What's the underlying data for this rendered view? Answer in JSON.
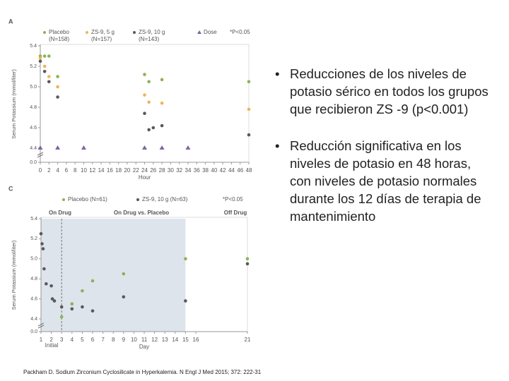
{
  "chart_data": [
    {
      "type": "scatter",
      "panel": "A",
      "y_label": "Serum Potassium (mmol/liter)",
      "x_label": "Hour",
      "xlim": [
        0,
        48
      ],
      "xticks": [
        0,
        2,
        4,
        6,
        8,
        10,
        12,
        14,
        16,
        18,
        20,
        22,
        24,
        26,
        28,
        30,
        32,
        34,
        36,
        38,
        40,
        42,
        44,
        46,
        48
      ],
      "ylim": [
        0,
        5.4
      ],
      "y_break": true,
      "yticks": [
        {
          "value": 0,
          "label": "0.0"
        },
        4.4,
        4.6,
        4.8,
        {
          "value": 5,
          "label": "5.0"
        },
        5.2,
        5.4
      ],
      "legend_note": "*P<0.05",
      "series": [
        {
          "name": "Placebo",
          "note": "(N=158)",
          "color": "#8db255",
          "x": [
            0,
            1,
            2,
            4,
            24,
            25,
            28,
            48
          ],
          "values": [
            5.3,
            5.3,
            5.3,
            5.1,
            5.12,
            5.05,
            5.07,
            5.05
          ]
        },
        {
          "name": "ZS-9, 5 g",
          "note": "(N=157)",
          "color": "#f0b45a",
          "x": [
            0,
            1,
            2,
            4,
            24,
            25,
            28,
            48
          ],
          "values": [
            5.28,
            5.2,
            5.1,
            5.0,
            4.92,
            4.85,
            4.84,
            4.78
          ]
        },
        {
          "name": "ZS-9, 10 g",
          "note": "(N=143)",
          "color": "#595959",
          "x": [
            0,
            1,
            2,
            4,
            24,
            25,
            26,
            28,
            48
          ],
          "values": [
            5.25,
            5.15,
            5.05,
            4.9,
            4.74,
            4.58,
            4.6,
            4.62,
            4.53
          ]
        },
        {
          "name": "Dose",
          "color": "#8064a2",
          "marker": "triangle",
          "x": [
            0,
            4,
            10,
            24,
            28,
            34
          ]
        }
      ]
    },
    {
      "type": "scatter",
      "panel": "C",
      "y_label": "Serum Potassium (mmol/liter)",
      "x_label": "Day",
      "xlim": [
        1,
        21
      ],
      "xticks": [
        1,
        2,
        3,
        4,
        5,
        6,
        7,
        8,
        9,
        10,
        11,
        12,
        13,
        14,
        15,
        16,
        21
      ],
      "ylim": [
        0,
        5.4
      ],
      "y_break": true,
      "yticks": [
        {
          "value": 0,
          "label": "0.0"
        },
        4.4,
        4.6,
        4.8,
        {
          "value": 5,
          "label": "5.0"
        },
        5.2,
        5.4
      ],
      "legend_note": "*P<0.05",
      "shaded_span": [
        1,
        15
      ],
      "vline": 3,
      "annotations": [
        "On Drug",
        "On Drug vs. Placebo",
        "Off Drug",
        "Initial"
      ],
      "series": [
        {
          "name": "Placebo (N=61)",
          "color": "#8db255",
          "x": [
            3,
            4,
            5,
            6,
            9,
            15,
            21
          ],
          "values": [
            4.42,
            4.55,
            4.68,
            4.78,
            4.85,
            5.0,
            5.0
          ]
        },
        {
          "name": "ZS-9, 10 g (N=63)",
          "color": "#595959",
          "x": [
            1,
            1.1,
            1.2,
            1.3,
            1.5,
            2,
            2.1,
            2.3,
            3,
            4,
            5,
            6,
            9,
            15,
            21
          ],
          "values": [
            5.25,
            5.15,
            5.1,
            4.9,
            4.75,
            4.73,
            4.6,
            4.58,
            4.52,
            4.5,
            4.52,
            4.48,
            4.62,
            4.58,
            4.95
          ]
        }
      ]
    }
  ],
  "bullets": [
    "Reducciones de los niveles de potasio sérico en todos los grupos que recibieron ZS -9 (p<0.001)",
    "Reducción significativa en los niveles de potasio en 48 horas, con niveles de potasio normales durante los 12 días de terapia de mantenimiento"
  ],
  "citation": "Packham D. Sodium Zirconium Cyclosilicate in Hyperkalemia. N Engl J Med 2015; 372: 222-31"
}
